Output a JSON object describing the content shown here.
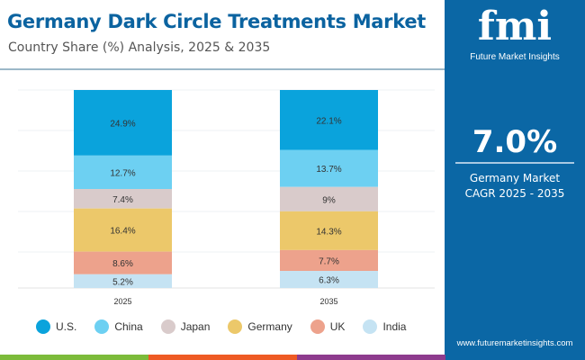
{
  "header": {
    "title": "Germany Dark Circle Treatments Market",
    "subtitle": "Country Share (%) Analysis, 2025 & 2035"
  },
  "brand": {
    "logo_text": "fmi",
    "name": "Future Market Insights",
    "url": "www.futuremarketinsights.com"
  },
  "cagr": {
    "value": "7.0%",
    "label_line1": "Germany Market",
    "label_line2": "CAGR 2025 - 2035"
  },
  "chart_data": {
    "type": "bar",
    "stacked": true,
    "categories": [
      "2025",
      "2035"
    ],
    "series": [
      {
        "name": "U.S.",
        "values": [
          24.9,
          22.1
        ],
        "labels": [
          "24.9%",
          "22.1%"
        ],
        "color": "#0aa3dc"
      },
      {
        "name": "China",
        "values": [
          12.7,
          13.7
        ],
        "labels": [
          "12.7%",
          "13.7%"
        ],
        "color": "#6dd0f2"
      },
      {
        "name": "Japan",
        "values": [
          7.4,
          9
        ],
        "labels": [
          "7.4%",
          "9%"
        ],
        "color": "#d9cbcb"
      },
      {
        "name": "Germany",
        "values": [
          16.4,
          14.3
        ],
        "labels": [
          "16.4%",
          "14.3%"
        ],
        "color": "#ecc86a"
      },
      {
        "name": "UK",
        "values": [
          8.6,
          7.7
        ],
        "labels": [
          "8.6%",
          "7.7%"
        ],
        "color": "#eda28c"
      },
      {
        "name": "India",
        "values": [
          5.2,
          6.3
        ],
        "labels": [
          "5.2%",
          "6.3%"
        ],
        "color": "#c5e3f3"
      }
    ],
    "grid": true,
    "legend": "bottom"
  },
  "stripe_colors": [
    "#7cbb3a",
    "#ee5a24",
    "#8e3b8e",
    "#0b67a5"
  ]
}
